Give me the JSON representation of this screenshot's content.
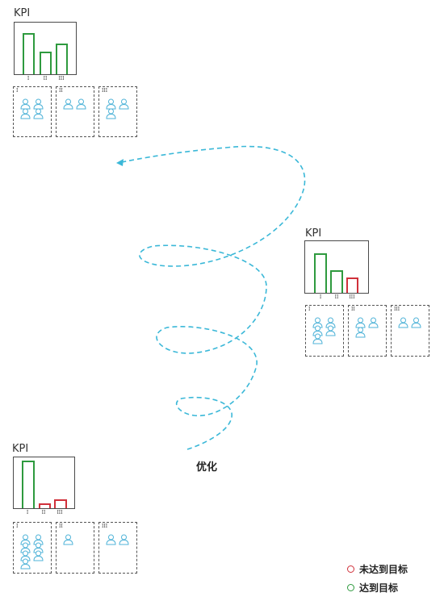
{
  "panels": [
    {
      "id": "top",
      "kpi_label": "KPI",
      "tick_labels": [
        "I",
        "II",
        "III"
      ],
      "bars": [
        {
          "tick": "I",
          "level": 0.8,
          "status": "met"
        },
        {
          "tick": "II",
          "level": 0.43,
          "status": "met"
        },
        {
          "tick": "III",
          "level": 0.6,
          "status": "met"
        }
      ],
      "groups": [
        {
          "label": "I",
          "people": 4
        },
        {
          "label": "II",
          "people": 2
        },
        {
          "label": "III",
          "people": 3
        }
      ]
    },
    {
      "id": "middle",
      "kpi_label": "KPI",
      "tick_labels": [
        "I",
        "II",
        "III"
      ],
      "bars": [
        {
          "tick": "I",
          "level": 0.76,
          "status": "met"
        },
        {
          "tick": "II",
          "level": 0.44,
          "status": "met"
        },
        {
          "tick": "III",
          "level": 0.3,
          "status": "unmet"
        }
      ],
      "groups": [
        {
          "label": "I",
          "people": 5
        },
        {
          "label": "II",
          "people": 3
        },
        {
          "label": "III",
          "people": 2
        }
      ]
    },
    {
      "id": "bottom",
      "kpi_label": "KPI",
      "tick_labels": [
        "I",
        "II",
        "III"
      ],
      "bars": [
        {
          "tick": "I",
          "level": 0.93,
          "status": "met"
        },
        {
          "tick": "II",
          "level": 0.09,
          "status": "unmet"
        },
        {
          "tick": "III",
          "level": 0.17,
          "status": "unmet"
        }
      ],
      "groups": [
        {
          "label": "I",
          "people": 7
        },
        {
          "label": "II",
          "people": 1
        },
        {
          "label": "III",
          "people": 2
        }
      ]
    }
  ],
  "spiral_label": "优化",
  "legend": [
    {
      "label": "未达到目标",
      "status": "unmet"
    },
    {
      "label": "达到目标",
      "status": "met"
    }
  ],
  "colors": {
    "met": "#2e9a3e",
    "unmet": "#d0303a",
    "person": "#4fb3d8",
    "spiral": "#3bb8d8",
    "frame": "#4a4a4a"
  }
}
